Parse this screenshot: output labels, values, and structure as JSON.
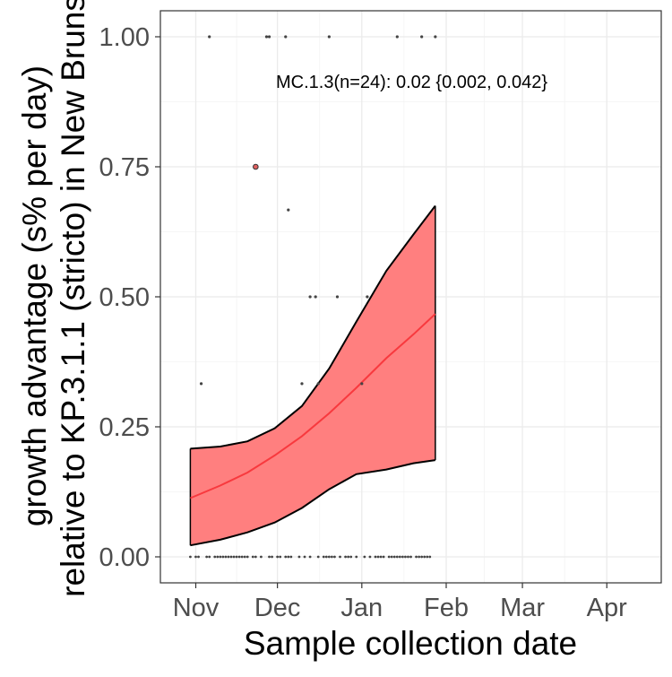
{
  "chart_data": {
    "type": "line",
    "xlabel": "Sample collection date",
    "ylabel_lines": [
      "growth advantage (s% per day)",
      "relative to KP.3.1.1 (stricto) in New Bruns"
    ],
    "annotation": "MC.1.3(n=24): 0.02 {0.002, 0.042}",
    "x_ticks": [
      {
        "date": "2024-11-01",
        "label": "Nov"
      },
      {
        "date": "2024-12-01",
        "label": "Dec"
      },
      {
        "date": "2025-01-01",
        "label": "Jan"
      },
      {
        "date": "2025-02-01",
        "label": "Feb"
      },
      {
        "date": "2025-03-01",
        "label": "Mar"
      },
      {
        "date": "2025-04-01",
        "label": "Apr"
      }
    ],
    "xlim": [
      "2024-10-19",
      "2025-04-21"
    ],
    "y_ticks": [
      {
        "value": 0.0,
        "label": "0.00"
      },
      {
        "value": 0.25,
        "label": "0.25"
      },
      {
        "value": 0.5,
        "label": "0.50"
      },
      {
        "value": 0.75,
        "label": "0.75"
      },
      {
        "value": 1.0,
        "label": "1.00"
      }
    ],
    "ylim": [
      -0.05,
      1.05
    ],
    "grid": true,
    "colors": {
      "ribbon": "#ff7f7f",
      "fit_line": "#f8393e",
      "points": "#444444",
      "highlight_point": "#e06060",
      "outline": "#000000"
    },
    "fit": {
      "dates": [
        "2024-10-30",
        "2024-11-10",
        "2024-11-20",
        "2024-11-30",
        "2024-12-10",
        "2024-12-20",
        "2024-12-30",
        "2025-01-10",
        "2025-01-20",
        "2025-01-28"
      ],
      "mean": [
        0.113,
        0.137,
        0.162,
        0.195,
        0.232,
        0.276,
        0.325,
        0.382,
        0.428,
        0.467
      ],
      "upper": [
        0.208,
        0.212,
        0.222,
        0.247,
        0.29,
        0.362,
        0.452,
        0.55,
        0.62,
        0.675
      ],
      "lower": [
        0.022,
        0.033,
        0.047,
        0.066,
        0.094,
        0.13,
        0.159,
        0.168,
        0.18,
        0.186
      ]
    },
    "points": [
      {
        "date": "2024-11-06",
        "value": 1.0
      },
      {
        "date": "2024-11-27",
        "value": 1.0
      },
      {
        "date": "2024-11-28",
        "value": 1.0
      },
      {
        "date": "2024-12-04",
        "value": 1.0
      },
      {
        "date": "2024-12-20",
        "value": 1.0
      },
      {
        "date": "2025-01-14",
        "value": 1.0
      },
      {
        "date": "2025-01-23",
        "value": 1.0
      },
      {
        "date": "2025-01-28",
        "value": 1.0
      },
      {
        "date": "2024-11-23",
        "value": 0.75,
        "highlight": true
      },
      {
        "date": "2024-12-05",
        "value": 0.667
      },
      {
        "date": "2024-12-13",
        "value": 0.5
      },
      {
        "date": "2024-12-15",
        "value": 0.5
      },
      {
        "date": "2024-12-23",
        "value": 0.5
      },
      {
        "date": "2025-01-03",
        "value": 0.5
      },
      {
        "date": "2024-11-03",
        "value": 0.333
      },
      {
        "date": "2024-12-10",
        "value": 0.333
      },
      {
        "date": "2024-12-16",
        "value": 0.333
      },
      {
        "date": "2025-01-01",
        "value": 0.333
      }
    ],
    "zero_points_dates": [
      "2024-10-30",
      "2024-11-01",
      "2024-11-02",
      "2024-11-05",
      "2024-11-06",
      "2024-11-08",
      "2024-11-09",
      "2024-11-10",
      "2024-11-11",
      "2024-11-12",
      "2024-11-13",
      "2024-11-14",
      "2024-11-15",
      "2024-11-16",
      "2024-11-17",
      "2024-11-18",
      "2024-11-19",
      "2024-11-20",
      "2024-11-22",
      "2024-11-23",
      "2024-11-25",
      "2024-11-28",
      "2024-11-29",
      "2024-12-01",
      "2024-12-02",
      "2024-12-04",
      "2024-12-05",
      "2024-12-06",
      "2024-12-09",
      "2024-12-11",
      "2024-12-13",
      "2024-12-16",
      "2024-12-18",
      "2024-12-19",
      "2024-12-20",
      "2024-12-21",
      "2024-12-22",
      "2024-12-24",
      "2024-12-26",
      "2024-12-27",
      "2024-12-28",
      "2024-12-30",
      "2025-01-02",
      "2025-01-04",
      "2025-01-06",
      "2025-01-07",
      "2025-01-08",
      "2025-01-09",
      "2025-01-11",
      "2025-01-12",
      "2025-01-13",
      "2025-01-14",
      "2025-01-15",
      "2025-01-16",
      "2025-01-17",
      "2025-01-18",
      "2025-01-19",
      "2025-01-21",
      "2025-01-22",
      "2025-01-23",
      "2025-01-24",
      "2025-01-25",
      "2025-01-26"
    ]
  }
}
